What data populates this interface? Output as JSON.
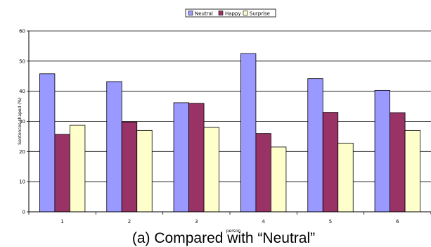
{
  "chart_data": {
    "type": "bar",
    "categories": [
      "1",
      "2",
      "3",
      "4",
      "5",
      "6"
    ],
    "series": [
      {
        "name": "Neutral",
        "values": [
          45.8,
          43.2,
          36.2,
          52.5,
          44.2,
          40.3
        ]
      },
      {
        "name": "Happy",
        "values": [
          25.7,
          29.8,
          36.0,
          26.0,
          33.0,
          32.9
        ]
      },
      {
        "name": "Surprise",
        "values": [
          28.7,
          27.0,
          28.0,
          21.5,
          22.8,
          27.0
        ]
      }
    ],
    "colors": [
      "#9999ff",
      "#993366",
      "#ffffcc"
    ],
    "yticks": [
      "0",
      "10",
      "20",
      "30",
      "40",
      "50",
      "60"
    ],
    "ylim": [
      0,
      60
    ],
    "xlabel": "person",
    "ylabel": "Sentences shaped (%)",
    "legend_position": "top",
    "grid": true
  },
  "caption": "(a) Compared with “Neutral”"
}
